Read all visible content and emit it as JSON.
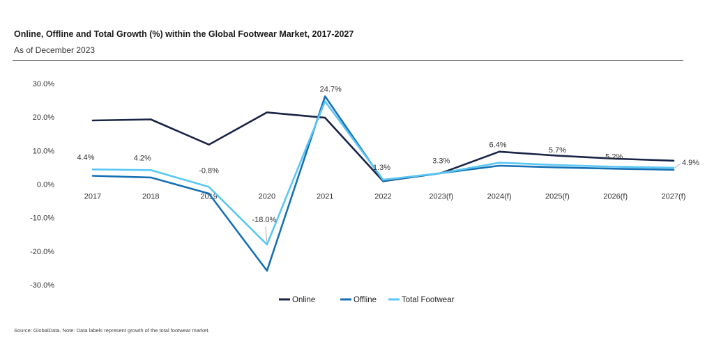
{
  "header": {
    "title": "Online, Offline and Total Growth (%) within the Global Footwear Market, 2017-2027",
    "subtitle": "As of December 2023"
  },
  "footer": {
    "source": "Source: GlobalData. Note: Data labels represent growth of the total footwear market."
  },
  "chart_data": {
    "type": "line",
    "categories": [
      "2017",
      "2018",
      "2019",
      "2020",
      "2021",
      "2022",
      "2023(f)",
      "2024(f)",
      "2025(f)",
      "2026(f)",
      "2027(f)"
    ],
    "y_ticks": [
      "30.0%",
      "20.0%",
      "10.0%",
      "0.0%",
      "-10.0%",
      "-20.0%",
      "-30.0%"
    ],
    "ylim": [
      -30,
      30
    ],
    "grid": false,
    "legend_position": "bottom",
    "series": [
      {
        "name": "Online",
        "color": "#1a2447",
        "values": [
          19.0,
          19.3,
          11.8,
          21.4,
          19.8,
          0.9,
          3.3,
          9.7,
          8.5,
          7.6,
          7.0
        ]
      },
      {
        "name": "Offline",
        "color": "#1670b4",
        "values": [
          2.5,
          2.0,
          -2.8,
          -25.8,
          26.2,
          1.0,
          3.3,
          5.5,
          5.0,
          4.6,
          4.3
        ]
      },
      {
        "name": "Total Footwear",
        "color": "#5ac7f5",
        "values": [
          4.4,
          4.2,
          -0.8,
          -18.0,
          24.7,
          1.3,
          3.3,
          6.4,
          5.7,
          5.2,
          4.9
        ]
      }
    ],
    "data_labels": [
      "4.4%",
      "4.2%",
      "-0.8%",
      "-18.0%",
      "24.7%",
      "1.3%",
      "3.3%",
      "6.4%",
      "5.7%",
      "5.2%",
      "4.9%"
    ]
  }
}
